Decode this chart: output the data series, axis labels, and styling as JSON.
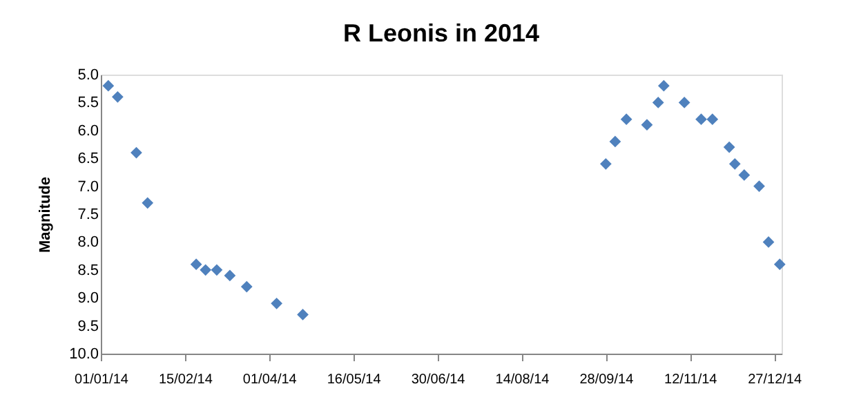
{
  "chart_data": {
    "type": "scatter",
    "title": "R Leonis in 2014",
    "ylabel": "Magnitude",
    "x": [
      "2014-01-05",
      "2014-01-10",
      "2014-01-20",
      "2014-01-26",
      "2014-02-21",
      "2014-02-26",
      "2014-03-04",
      "2014-03-11",
      "2014-03-20",
      "2014-04-05",
      "2014-04-19",
      "2014-09-28",
      "2014-10-03",
      "2014-10-09",
      "2014-10-20",
      "2014-10-26",
      "2014-10-29",
      "2014-11-09",
      "2014-11-18",
      "2014-11-24",
      "2014-12-03",
      "2014-12-06",
      "2014-12-11",
      "2014-12-19",
      "2014-12-24",
      "2014-12-30"
    ],
    "series": [
      {
        "color": "#4f81bd",
        "values": [
          5.2,
          5.4,
          6.4,
          7.3,
          8.4,
          8.5,
          8.5,
          8.6,
          8.8,
          9.1,
          9.3,
          6.6,
          6.2,
          5.8,
          5.9,
          5.5,
          5.2,
          5.5,
          5.8,
          5.8,
          6.3,
          6.6,
          6.8,
          7.0,
          8.0,
          8.4
        ]
      }
    ],
    "marker": "diamond",
    "grid": false,
    "xlim": [
      "2014-01-01",
      "2014-12-31"
    ],
    "xticks": [
      {
        "value": "2014-01-01",
        "label": "01/01/14"
      },
      {
        "value": "2014-02-15",
        "label": "15/02/14"
      },
      {
        "value": "2014-04-01",
        "label": "01/04/14"
      },
      {
        "value": "2014-05-16",
        "label": "16/05/14"
      },
      {
        "value": "2014-06-30",
        "label": "30/06/14"
      },
      {
        "value": "2014-08-14",
        "label": "14/08/14"
      },
      {
        "value": "2014-09-28",
        "label": "28/09/14"
      },
      {
        "value": "2014-11-12",
        "label": "12/11/14"
      },
      {
        "value": "2014-12-27",
        "label": "27/12/14"
      }
    ],
    "ylim": [
      10.0,
      5.0
    ],
    "yticks": [
      {
        "value": 5.0,
        "label": "5.0"
      },
      {
        "value": 5.5,
        "label": "5.5"
      },
      {
        "value": 6.0,
        "label": "6.0"
      },
      {
        "value": 6.5,
        "label": "6.5"
      },
      {
        "value": 7.0,
        "label": "7.0"
      },
      {
        "value": 7.5,
        "label": "7.5"
      },
      {
        "value": 8.0,
        "label": "8.0"
      },
      {
        "value": 8.5,
        "label": "8.5"
      },
      {
        "value": 9.0,
        "label": "9.0"
      },
      {
        "value": 9.5,
        "label": "9.5"
      },
      {
        "value": 10.0,
        "label": "10.0"
      }
    ]
  }
}
